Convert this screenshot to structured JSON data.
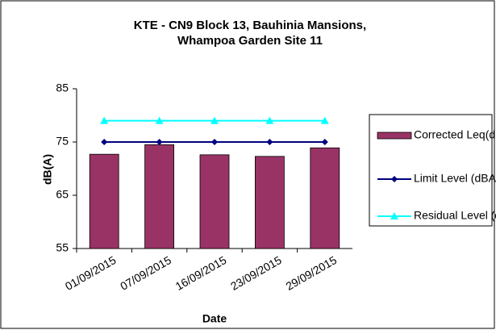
{
  "chart_data": {
    "type": "bar",
    "title": "KTE - CN9 Block 13, Bauhinia Mansions, Whampoa Garden Site 11",
    "x_label": "Date",
    "y_label": "dB(A)",
    "categories": [
      "01/09/2015",
      "07/09/2015",
      "16/09/2015",
      "23/09/2015",
      "29/09/2015"
    ],
    "series": [
      {
        "name": "Corrected Leq(dBA)#",
        "type": "bar",
        "color": "#993366",
        "values": [
          72.7,
          74.5,
          72.6,
          72.3,
          73.9
        ]
      },
      {
        "name": "Limit Level (dBA)",
        "type": "line",
        "marker": "diamond",
        "color": "#000080",
        "values": [
          75,
          75,
          75,
          75,
          75
        ]
      },
      {
        "name": "Residual Level (dBA)##",
        "type": "line",
        "marker": "triangle",
        "color": "#00ffff",
        "values": [
          79,
          79,
          79,
          79,
          79
        ]
      }
    ],
    "ylim": [
      55,
      85
    ],
    "yticks": [
      55,
      65,
      75,
      85
    ],
    "legend": "right"
  }
}
